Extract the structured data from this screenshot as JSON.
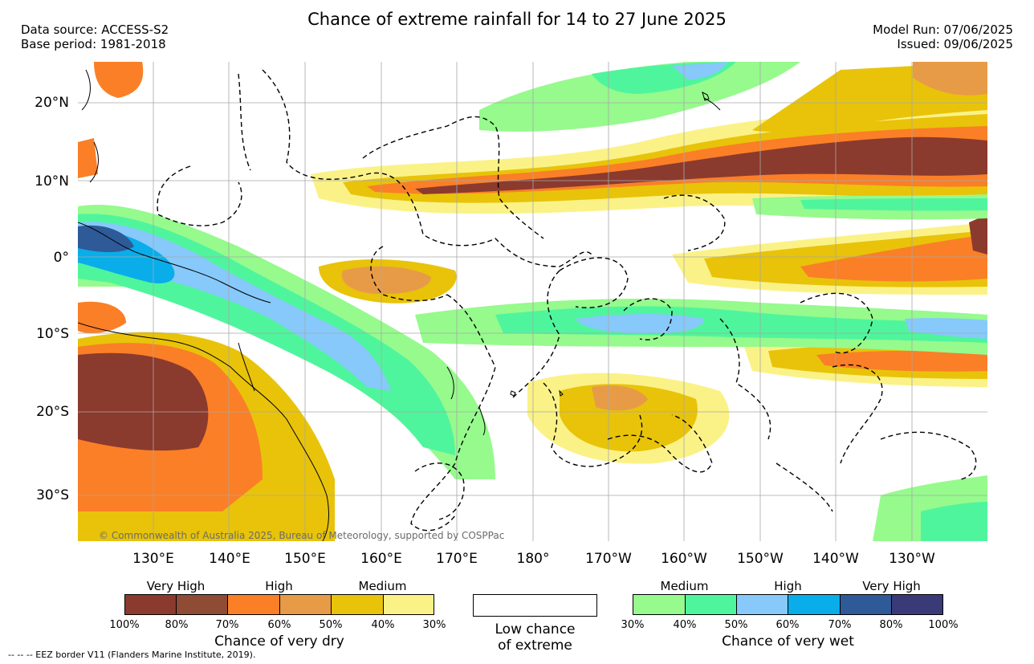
{
  "header": {
    "title": "Chance of extreme rainfall for 14 to 27 June 2025",
    "data_source": "Data source: ACCESS-S2",
    "base_period": "Base period: 1981-2018",
    "model_run": "Model Run: 07/06/2025",
    "issued": "Issued: 09/06/2025"
  },
  "axes": {
    "lat_labels": [
      "20°N",
      "10°N",
      "0°",
      "10°S",
      "20°S",
      "30°S"
    ],
    "lon_labels": [
      "130°E",
      "140°E",
      "150°E",
      "160°E",
      "170°E",
      "180°",
      "170°W",
      "160°W",
      "150°W",
      "140°W",
      "130°W"
    ]
  },
  "map": {
    "copyright": "© Commonwealth of Australia 2025, Bureau of Meteorology, supported by COSPPac"
  },
  "legend_dry": {
    "levels": [
      "Very High",
      "High",
      "Medium"
    ],
    "colors": [
      "#8b3a2e",
      "#8f4b33",
      "#fa7f27",
      "#e89b47",
      "#e8c30a",
      "#fbf287"
    ],
    "ticks": [
      "100%",
      "80%",
      "70%",
      "60%",
      "50%",
      "40%",
      "30%"
    ],
    "caption": "Chance of very dry"
  },
  "legend_low": {
    "caption_line1": "Low chance",
    "caption_line2": "of extreme"
  },
  "legend_wet": {
    "levels": [
      "Medium",
      "High",
      "Very High"
    ],
    "colors": [
      "#96fa8d",
      "#4ff59c",
      "#86c9fa",
      "#09adea",
      "#2f5a98",
      "#3b3a78"
    ],
    "ticks": [
      "30%",
      "40%",
      "50%",
      "60%",
      "70%",
      "80%",
      "100%"
    ],
    "caption": "Chance of very wet"
  },
  "footer": {
    "eez": "-- -- -- EEZ border V11 (Flanders Marine Institute, 2019)."
  }
}
